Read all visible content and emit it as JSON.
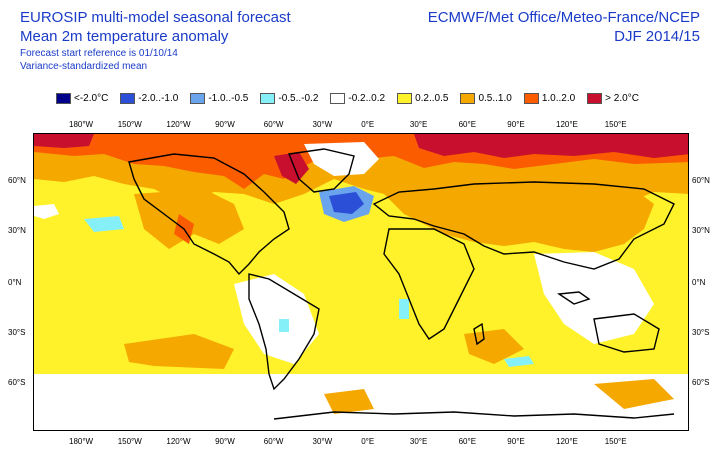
{
  "header": {
    "title_line1": "EUROSIP multi-model seasonal forecast",
    "title_line2": "Mean 2m temperature anomaly",
    "sub_line1": "Forecast start reference is 01/10/14",
    "sub_line2": "Variance-standardized mean",
    "right_line1": "ECMWF/Met Office/Meteo-France/NCEP",
    "right_line2": "DJF 2014/15"
  },
  "legend": [
    {
      "label": "<-2.0°C",
      "color": "#00008b"
    },
    {
      "label": "-2.0..-1.0",
      "color": "#2c4fd8"
    },
    {
      "label": "-1.0..-0.5",
      "color": "#69a4ec"
    },
    {
      "label": "-0.5..-0.2",
      "color": "#86f0f8"
    },
    {
      "label": "-0.2..0.2",
      "color": "#ffffff"
    },
    {
      "label": "0.2..0.5",
      "color": "#fff22a"
    },
    {
      "label": "0.5..1.0",
      "color": "#f5a800"
    },
    {
      "label": "1.0..2.0",
      "color": "#fb5c00"
    },
    {
      "label": "> 2.0°C",
      "color": "#c80f2d"
    }
  ],
  "lon_labels": [
    "180°W",
    "150°W",
    "120°W",
    "90°W",
    "60°W",
    "30°W",
    "0°E",
    "30°E",
    "60°E",
    "90°E",
    "120°E",
    "150°E"
  ],
  "lat_labels": [
    "60°N",
    "30°N",
    "0°N",
    "30°S",
    "60°S"
  ]
}
